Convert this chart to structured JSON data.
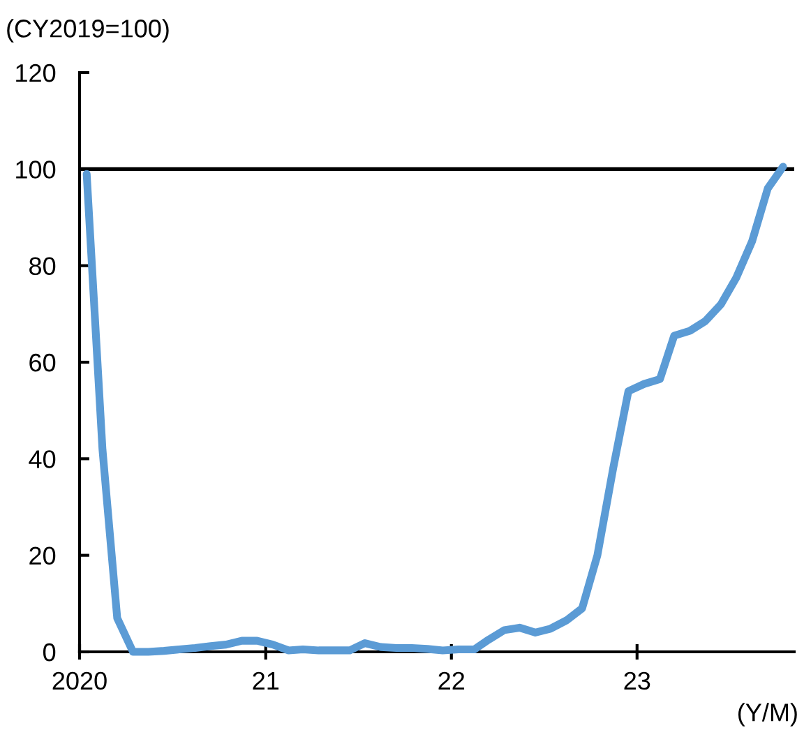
{
  "chart_data": {
    "type": "line",
    "ylabel": "(CY2019=100)",
    "xlabel": "(Y/M)",
    "x": [
      "2020-01-15",
      "2020-02-15",
      "2020-03-15",
      "2020-04-15",
      "2020-05-15",
      "2020-06-15",
      "2020-07-15",
      "2020-08-15",
      "2020-09-15",
      "2020-10-15",
      "2020-11-15",
      "2020-12-15",
      "2021-01-15",
      "2021-02-15",
      "2021-03-15",
      "2021-04-15",
      "2021-05-15",
      "2021-06-15",
      "2021-07-15",
      "2021-08-15",
      "2021-09-15",
      "2021-10-15",
      "2021-11-15",
      "2021-12-15",
      "2022-01-15",
      "2022-02-15",
      "2022-03-15",
      "2022-04-15",
      "2022-05-15",
      "2022-06-15",
      "2022-07-15",
      "2022-08-15",
      "2022-09-15",
      "2022-10-15",
      "2022-11-15",
      "2022-12-15",
      "2023-01-15",
      "2023-02-15",
      "2023-03-15",
      "2023-04-15",
      "2023-05-15",
      "2023-06-15",
      "2023-07-15",
      "2023-08-15",
      "2023-09-15",
      "2023-10-15"
    ],
    "series": [
      {
        "color": "#5b9bd5",
        "values": [
          99,
          42,
          7,
          0,
          0,
          0.2,
          0.5,
          0.8,
          1.2,
          1.5,
          2.3,
          2.3,
          1.5,
          0.3,
          0.5,
          0.3,
          0.3,
          0.3,
          1.8,
          1.0,
          0.8,
          0.8,
          0.6,
          0.3,
          0.5,
          0.5,
          2.5,
          4.5,
          5,
          4,
          4.8,
          6.5,
          9,
          20,
          38,
          54,
          55.5,
          56.5,
          65.5,
          66.5,
          68.5,
          72,
          77.5,
          85,
          96,
          100.5
        ]
      }
    ],
    "xlim": [
      "2020-01-01",
      "2023-11-06"
    ],
    "xticks": [
      {
        "value": "2020-01-01",
        "label": "2020"
      },
      {
        "value": "2021-01-01",
        "label": "21"
      },
      {
        "value": "2022-01-01",
        "label": "22"
      },
      {
        "value": "2023-01-01",
        "label": "23"
      }
    ],
    "ylim": [
      0,
      120
    ],
    "yticks": [
      0,
      20,
      40,
      60,
      80,
      100,
      120
    ],
    "ref_lines": [
      {
        "axis": "y",
        "value": 100,
        "color": "#000000",
        "line_style": "solid"
      }
    ],
    "grid": false,
    "marker": "none",
    "line_style": "solid"
  }
}
